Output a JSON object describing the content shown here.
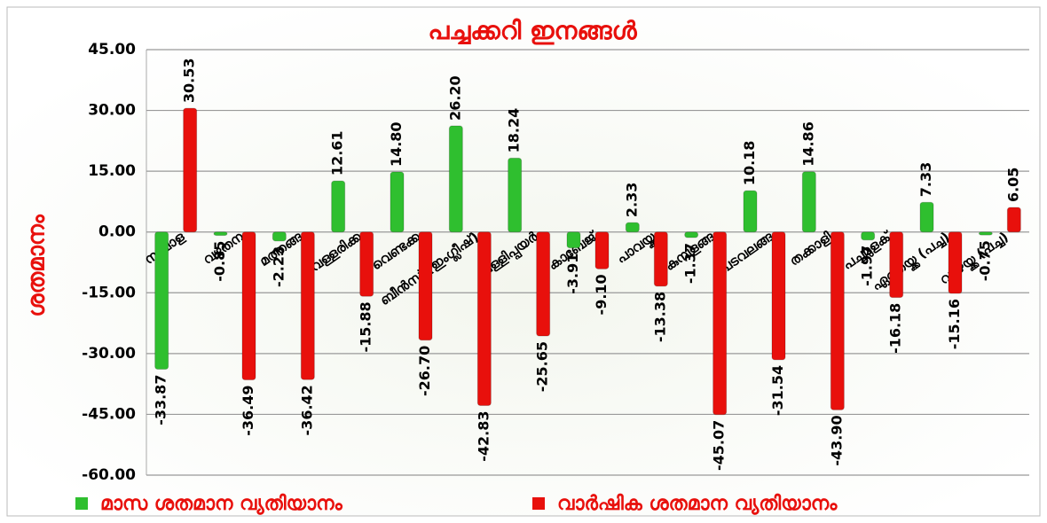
{
  "chart_data": {
    "type": "bar",
    "title": "പച്ചക്കറി ഇനങ്ങള്‍",
    "y_label": "ശതമാനം",
    "categories": [
      "സവാള",
      "വഴുതന",
      "മത്തങ്ങ",
      "വെള്ളരിക്ക",
      "വെണ്ടക്ക",
      "ബീന്‍സ് (ഇംഗ്ലീഷ്)",
      "വള്ളിപ്പയര്‍",
      "കാബേജ്",
      "പാവയ്ക്ക",
      "കുമ്പളങ്ങ",
      "പടവലങ്ങ",
      "തക്കാളി",
      "പച്ചമുളക്",
      "ഏത്തയ്ക്ക (പച്ച)",
      "വാഴയ്ക്ക (പച്ച)"
    ],
    "series": [
      {
        "name": "മാസ ശതമാന വ്യതിയാനം",
        "color": "#2fbf2f",
        "values": [
          -33.87,
          -0.85,
          -2.23,
          12.61,
          14.8,
          26.2,
          18.24,
          -3.91,
          2.33,
          -1.37,
          10.18,
          14.86,
          -1.97,
          7.33,
          -0.75
        ],
        "value_labels": [
          "-33.87",
          "-0.85",
          "-2.23",
          "12.61",
          "14.80",
          "26.20",
          "18.24",
          "-3.91",
          "2.33",
          "-1.37",
          "10.18",
          "14.86",
          "-1.97",
          "7.33",
          "-0.75"
        ]
      },
      {
        "name": "വാര്‍ഷിക ശതമാന വ്യതിയാനം",
        "color": "#e8100c",
        "values": [
          30.53,
          -36.49,
          -36.42,
          -15.88,
          -26.7,
          -42.83,
          -25.65,
          -9.1,
          -13.38,
          -45.07,
          -31.54,
          -43.9,
          -16.18,
          -15.16,
          6.05
        ],
        "value_labels": [
          "30.53",
          "-36.49",
          "-36.42",
          "-15.88",
          "-26.70",
          "-42.83",
          "-25.65",
          "-9.10",
          "-13.38",
          "-45.07",
          "-31.54",
          "-43.90",
          "-16.18",
          "-15.16",
          "6.05"
        ]
      }
    ],
    "ylim": [
      -60,
      45
    ],
    "yticks": [
      {
        "value": -60,
        "label": "-60.00"
      },
      {
        "value": -45,
        "label": "-45.00"
      },
      {
        "value": -30,
        "label": "-30.00"
      },
      {
        "value": -15,
        "label": "-15.00"
      },
      {
        "value": 0,
        "label": "0.00"
      },
      {
        "value": 15,
        "label": "15.00"
      },
      {
        "value": 30,
        "label": "30.00"
      },
      {
        "value": 45,
        "label": "45.00"
      }
    ],
    "grid": true,
    "legend": "bottom"
  }
}
